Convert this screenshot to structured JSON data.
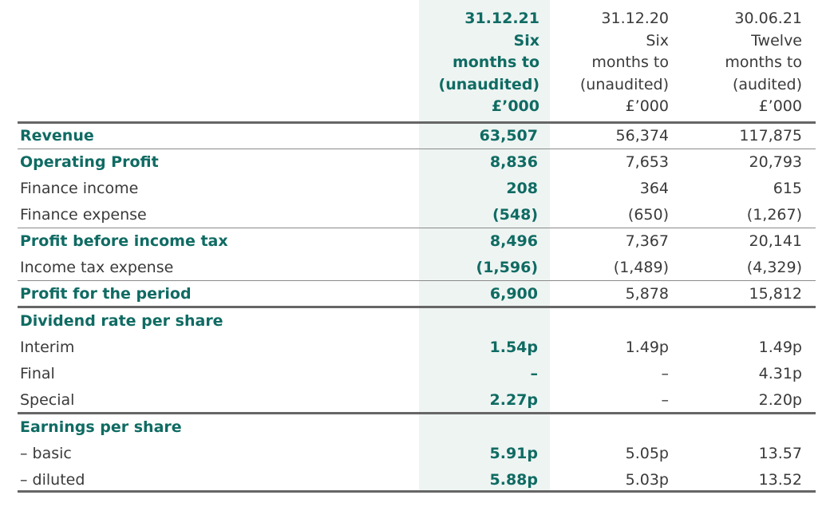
{
  "columns": [
    {
      "date": "31.12.21",
      "period": "Six",
      "months": "months to",
      "audit": "(unaudited)",
      "unit": "£’000"
    },
    {
      "date": "31.12.20",
      "period": "Six",
      "months": "months to",
      "audit": "(unaudited)",
      "unit": "£’000"
    },
    {
      "date": "30.06.21",
      "period": "Twelve",
      "months": "months to",
      "audit": "(audited)",
      "unit": "£’000"
    }
  ],
  "rows": [
    {
      "label": "Revenue",
      "c1": "63,507",
      "c2": "56,374",
      "c3": "117,875"
    },
    {
      "label": "Operating Profit",
      "c1": "8,836",
      "c2": "7,653",
      "c3": "20,793"
    },
    {
      "label": "Finance income",
      "c1": "208",
      "c2": "364",
      "c3": "615"
    },
    {
      "label": "Finance expense",
      "c1": "(548)",
      "c2": "(650)",
      "c3": "(1,267)"
    },
    {
      "label": "Profit before income tax",
      "c1": "8,496",
      "c2": "7,367",
      "c3": "20,141"
    },
    {
      "label": "Income tax expense",
      "c1": "(1,596)",
      "c2": "(1,489)",
      "c3": "(4,329)"
    },
    {
      "label": "Profit for the period",
      "c1": "6,900",
      "c2": "5,878",
      "c3": "15,812"
    },
    {
      "label": "Dividend rate per share",
      "c1": "",
      "c2": "",
      "c3": ""
    },
    {
      "label": "Interim",
      "c1": "1.54p",
      "c2": "1.49p",
      "c3": "1.49p"
    },
    {
      "label": "Final",
      "c1": "–",
      "c2": "–",
      "c3": "4.31p"
    },
    {
      "label": "Special",
      "c1": "2.27p",
      "c2": "–",
      "c3": "2.20p"
    },
    {
      "label": "Earnings per share",
      "c1": "",
      "c2": "",
      "c3": ""
    },
    {
      "label": "– basic",
      "c1": "5.91p",
      "c2": "5.05p",
      "c3": "13.57"
    },
    {
      "label": "– diluted",
      "c1": "5.88p",
      "c2": "5.03p",
      "c3": "13.52"
    }
  ],
  "colors": {
    "accent": "#0f6b63",
    "shade": "#eef4f2",
    "text": "#3a3a3a",
    "rule": "#666666"
  }
}
